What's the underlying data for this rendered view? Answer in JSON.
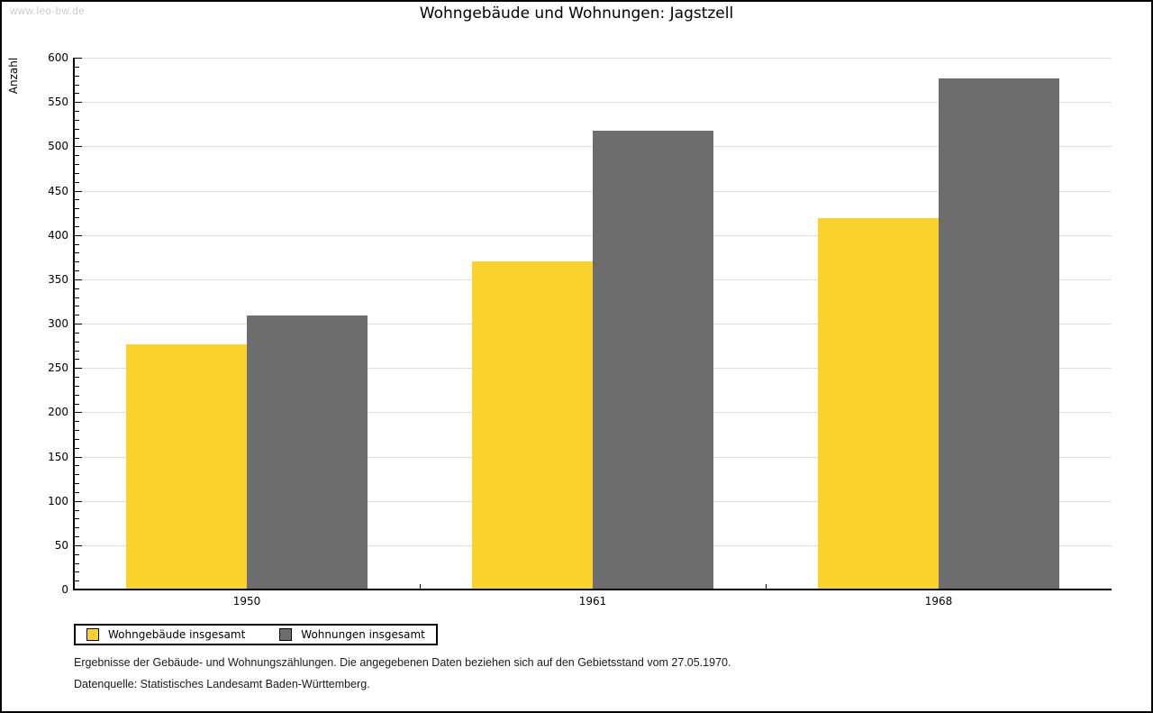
{
  "watermark": "www.leo-bw.de",
  "title": "Wohngebäude und Wohnungen: Jagstzell",
  "legend": {
    "items": [
      {
        "label": "Wohngebäude insgesamt"
      },
      {
        "label": "Wohnungen insgesamt"
      }
    ]
  },
  "footnotes": [
    "Ergebnisse der Gebäude- und Wohnungszählungen. Die angegebenen Daten beziehen sich auf den Gebietsstand vom 27.05.1970.",
    "Datenquelle: Statistisches Landesamt Baden-Württemberg."
  ],
  "chart_data": {
    "type": "bar",
    "title": "Wohngebäude und Wohnungen: Jagstzell",
    "categories": [
      "1950",
      "1961",
      "1968"
    ],
    "series": [
      {
        "name": "Wohngebäude insgesamt",
        "color": "#FCD32C",
        "values": [
          277,
          370,
          419
        ]
      },
      {
        "name": "Wohnungen insgesamt",
        "color": "#6D6D6D",
        "values": [
          309,
          518,
          577
        ]
      }
    ],
    "xlabel": "",
    "ylabel": "Anzahl",
    "ylim": [
      0,
      600
    ],
    "y_major_step": 50,
    "y_minor_step": 10,
    "grid": true,
    "gridline_color": "#dddddd",
    "legend_position": "bottom-left"
  }
}
